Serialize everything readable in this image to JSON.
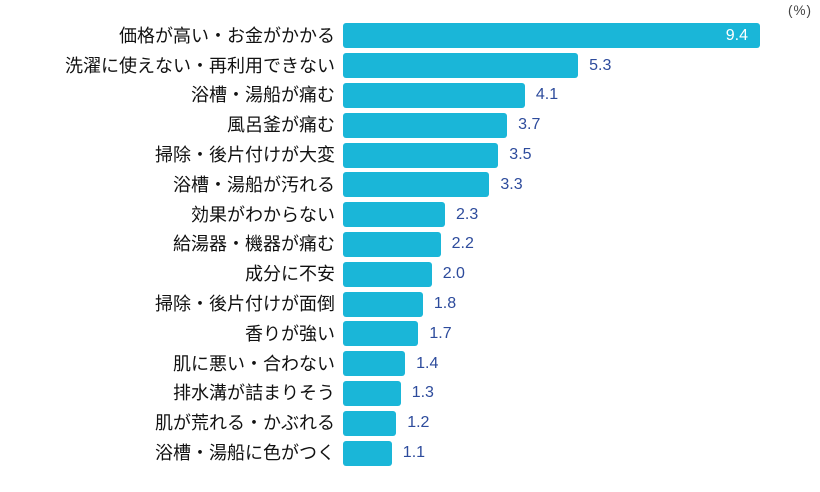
{
  "unit_label": "(%)",
  "colors": {
    "bar": "#1ab6d8",
    "value_text": "#2d4b9c",
    "value_text_inside_bar": "#ffffff",
    "category_text": "#111111",
    "unit_text": "#444444",
    "background": "#ffffff"
  },
  "chart_data": {
    "type": "bar",
    "orientation": "horizontal",
    "title": "",
    "xlabel": "",
    "ylabel": "",
    "unit": "%",
    "grid": false,
    "legend": false,
    "xlim": [
      0,
      9.4
    ],
    "categories": [
      "価格が高い・お金がかかる",
      "洗濯に使えない・再利用できない",
      "浴槽・湯船が痛む",
      "風呂釜が痛む",
      "掃除・後片付けが大変",
      "浴槽・湯船が汚れる",
      "効果がわからない",
      "給湯器・機器が痛む",
      "成分に不安",
      "掃除・後片付けが面倒",
      "香りが強い",
      "肌に悪い・合わない",
      "排水溝が詰まりそう",
      "肌が荒れる・かぶれる",
      "浴槽・湯船に色がつく"
    ],
    "values": [
      9.4,
      5.3,
      4.1,
      3.7,
      3.5,
      3.3,
      2.3,
      2.2,
      2.0,
      1.8,
      1.7,
      1.4,
      1.3,
      1.2,
      1.1
    ],
    "value_labels_shown": true,
    "max_value_label_inside_bar": true
  }
}
